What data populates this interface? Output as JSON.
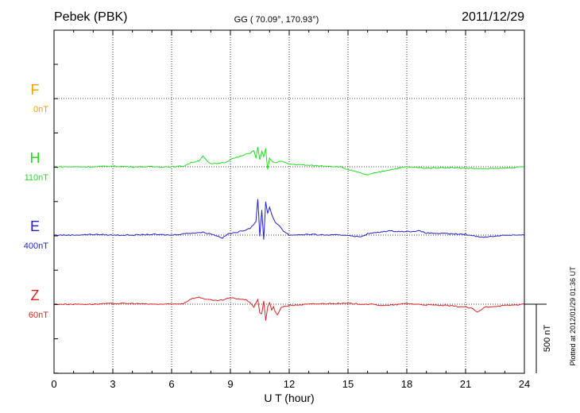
{
  "header": {
    "station": "Pebek (PBK)",
    "coords": "GG ( 70.09°, 170.93°)",
    "date": "2011/12/29"
  },
  "plotted_note": "Plotted at 2012/01/29 01:36 UT",
  "chart_data": {
    "type": "line",
    "xlabel": "U T (hour)",
    "xlim": [
      0,
      24
    ],
    "xticks": [
      0,
      3,
      6,
      9,
      12,
      15,
      18,
      21,
      24
    ],
    "scale_bar": {
      "label": "500 nT",
      "value": 500
    },
    "grid": true,
    "series": [
      {
        "name": "F",
        "baseline_label": "0nT",
        "color": "#f0a000",
        "x": [],
        "y": []
      },
      {
        "name": "H",
        "baseline_label": "110nT",
        "color": "#22dd22",
        "x": [
          0,
          1,
          2,
          3,
          4,
          5,
          6,
          6.6,
          7,
          7.4,
          7.6,
          7.8,
          8,
          8.4,
          8.8,
          9,
          9.4,
          9.8,
          10,
          10.2,
          10.3,
          10.4,
          10.5,
          10.6,
          10.7,
          10.8,
          10.9,
          11,
          11.2,
          11.6,
          12,
          13,
          14,
          14.6,
          15,
          15.5,
          16,
          16.5,
          17,
          18,
          19,
          20,
          21,
          22,
          23,
          24
        ],
        "y": [
          0,
          0,
          0,
          5,
          0,
          0,
          0,
          5,
          30,
          45,
          80,
          40,
          20,
          25,
          35,
          55,
          70,
          90,
          100,
          120,
          60,
          140,
          50,
          110,
          70,
          130,
          -20,
          60,
          30,
          40,
          20,
          10,
          5,
          0,
          -20,
          -40,
          -60,
          -40,
          -25,
          0,
          -10,
          -5,
          -10,
          -15,
          -10,
          0
        ]
      },
      {
        "name": "E",
        "baseline_label": "400nT",
        "color": "#2222cc",
        "x": [
          0,
          1,
          2,
          3,
          4,
          5,
          6,
          6.6,
          7,
          7.6,
          8,
          8.3,
          8.6,
          8.9,
          9.2,
          9.6,
          10,
          10.2,
          10.3,
          10.4,
          10.5,
          10.6,
          10.7,
          10.8,
          10.9,
          11,
          11.1,
          11.3,
          11.5,
          11.7,
          12,
          13,
          14,
          15,
          15.6,
          16,
          16.6,
          17,
          18,
          18.6,
          19,
          20,
          21,
          21.6,
          22,
          23,
          24
        ],
        "y": [
          0,
          0,
          5,
          0,
          0,
          5,
          0,
          10,
          15,
          20,
          10,
          -5,
          -20,
          10,
          15,
          30,
          50,
          80,
          100,
          260,
          -10,
          180,
          -30,
          240,
          160,
          200,
          150,
          90,
          70,
          30,
          0,
          5,
          0,
          0,
          -15,
          10,
          20,
          30,
          25,
          30,
          15,
          10,
          5,
          -10,
          -15,
          0,
          0
        ]
      },
      {
        "name": "Z",
        "baseline_label": "60nT",
        "color": "#dd2222",
        "x": [
          0,
          1,
          2,
          3,
          4,
          5,
          6,
          6.6,
          7,
          7.4,
          7.8,
          8.2,
          8.6,
          9,
          9.4,
          9.8,
          10,
          10.2,
          10.4,
          10.5,
          10.6,
          10.7,
          10.8,
          10.9,
          11,
          11.1,
          11.2,
          11.3,
          11.4,
          11.6,
          12,
          13,
          14,
          15,
          16,
          17,
          18,
          19,
          20,
          21,
          21.4,
          21.6,
          21.8,
          22,
          23,
          24
        ],
        "y": [
          0,
          0,
          0,
          5,
          5,
          0,
          0,
          5,
          40,
          50,
          35,
          25,
          30,
          45,
          40,
          30,
          15,
          -20,
          30,
          -60,
          -70,
          25,
          -120,
          -20,
          10,
          -40,
          -20,
          -60,
          -80,
          -20,
          -10,
          0,
          5,
          5,
          0,
          -10,
          5,
          -5,
          -10,
          -20,
          -35,
          -60,
          -40,
          -20,
          -10,
          0
        ]
      }
    ]
  }
}
